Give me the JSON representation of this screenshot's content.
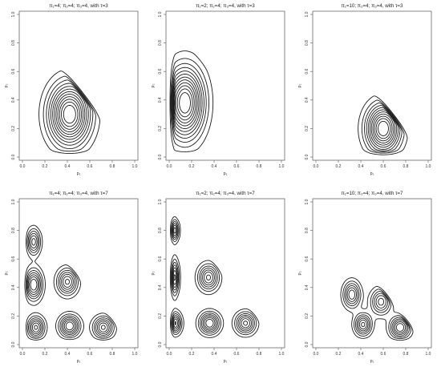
{
  "chart_data": [
    {
      "type": "contour",
      "title": "π₁=4; π₂=4; π₃=4, with τ=3",
      "xlabel": "p₁",
      "ylabel": "p₂",
      "xlim": [
        0,
        1
      ],
      "ylim": [
        0,
        1
      ],
      "x_ticks": [
        "0.0",
        "0.2",
        "0.4",
        "0.6",
        "0.8",
        "1.0"
      ],
      "y_ticks": [
        "0.0",
        "0.2",
        "0.4",
        "0.6",
        "0.8",
        "1.0"
      ],
      "peaks": [
        {
          "x": 0.42,
          "y": 0.3,
          "sx": 0.12,
          "sy": 0.14,
          "h": 1
        }
      ],
      "levels": 12
    },
    {
      "type": "contour",
      "title": "π₁=2; π₂=4; π₃=4, with τ=3",
      "xlabel": "p₁",
      "ylabel": "p₂",
      "xlim": [
        0,
        1
      ],
      "ylim": [
        0,
        1
      ],
      "x_ticks": [
        "0.0",
        "0.2",
        "0.4",
        "0.6",
        "0.8",
        "1.0"
      ],
      "y_ticks": [
        "0.0",
        "0.2",
        "0.4",
        "0.6",
        "0.8",
        "1.0"
      ],
      "peaks": [
        {
          "x": 0.14,
          "y": 0.38,
          "sx": 0.11,
          "sy": 0.16,
          "h": 1
        }
      ],
      "levels": 12
    },
    {
      "type": "contour",
      "title": "π₁=10; π₂=4; π₃=4, with τ=3",
      "xlabel": "p₁",
      "ylabel": "p₂",
      "xlim": [
        0,
        1
      ],
      "ylim": [
        0,
        1
      ],
      "x_ticks": [
        "0.0",
        "0.2",
        "0.4",
        "0.6",
        "0.8",
        "1.0"
      ],
      "y_ticks": [
        "0.0",
        "0.2",
        "0.4",
        "0.6",
        "0.8",
        "1.0"
      ],
      "peaks": [
        {
          "x": 0.6,
          "y": 0.2,
          "sx": 0.1,
          "sy": 0.11,
          "h": 1
        }
      ],
      "levels": 11
    },
    {
      "type": "contour",
      "title": "π₁=4; π₂=4; π₃=4, with τ=7",
      "xlabel": "p₁",
      "ylabel": "p₂",
      "xlim": [
        0,
        1
      ],
      "ylim": [
        0,
        1
      ],
      "x_ticks": [
        "0.0",
        "0.2",
        "0.4",
        "0.6",
        "0.8",
        "1.0"
      ],
      "y_ticks": [
        "0.0",
        "0.2",
        "0.4",
        "0.6",
        "0.8",
        "1.0"
      ],
      "peaks": [
        {
          "x": 0.1,
          "y": 0.72,
          "sx": 0.04,
          "sy": 0.06,
          "h": 0.8
        },
        {
          "x": 0.1,
          "y": 0.42,
          "sx": 0.05,
          "sy": 0.07,
          "h": 1
        },
        {
          "x": 0.4,
          "y": 0.44,
          "sx": 0.06,
          "sy": 0.06,
          "h": 0.9
        },
        {
          "x": 0.12,
          "y": 0.12,
          "sx": 0.05,
          "sy": 0.05,
          "h": 0.9
        },
        {
          "x": 0.42,
          "y": 0.13,
          "sx": 0.06,
          "sy": 0.05,
          "h": 1
        },
        {
          "x": 0.72,
          "y": 0.12,
          "sx": 0.06,
          "sy": 0.05,
          "h": 0.9
        }
      ],
      "levels": 7
    },
    {
      "type": "contour",
      "title": "π₁=2; π₂=4; π₃=4, with τ=7",
      "xlabel": "p₁",
      "ylabel": "p₂",
      "xlim": [
        0,
        1
      ],
      "ylim": [
        0,
        1
      ],
      "x_ticks": [
        "0.0",
        "0.2",
        "0.4",
        "0.6",
        "0.8",
        "1.0"
      ],
      "y_ticks": [
        "0.0",
        "0.2",
        "0.4",
        "0.6",
        "0.8",
        "1.0"
      ],
      "peaks": [
        {
          "x": 0.04,
          "y": 0.8,
          "sx": 0.03,
          "sy": 0.05,
          "h": 0.9
        },
        {
          "x": 0.04,
          "y": 0.47,
          "sx": 0.03,
          "sy": 0.08,
          "h": 1
        },
        {
          "x": 0.35,
          "y": 0.47,
          "sx": 0.06,
          "sy": 0.06,
          "h": 0.9
        },
        {
          "x": 0.05,
          "y": 0.15,
          "sx": 0.04,
          "sy": 0.05,
          "h": 0.9
        },
        {
          "x": 0.36,
          "y": 0.15,
          "sx": 0.06,
          "sy": 0.05,
          "h": 1
        },
        {
          "x": 0.68,
          "y": 0.15,
          "sx": 0.06,
          "sy": 0.05,
          "h": 0.9
        }
      ],
      "levels": 7
    },
    {
      "type": "contour",
      "title": "π₁=10; π₂=4; π₃=4, with τ=7",
      "xlabel": "p₁",
      "ylabel": "p₂",
      "xlim": [
        0,
        1
      ],
      "ylim": [
        0,
        1
      ],
      "x_ticks": [
        "0.0",
        "0.2",
        "0.4",
        "0.6",
        "0.8",
        "1.0"
      ],
      "y_ticks": [
        "0.0",
        "0.2",
        "0.4",
        "0.6",
        "0.8",
        "1.0"
      ],
      "peaks": [
        {
          "x": 0.32,
          "y": 0.35,
          "sx": 0.05,
          "sy": 0.06,
          "h": 0.85
        },
        {
          "x": 0.58,
          "y": 0.3,
          "sx": 0.06,
          "sy": 0.06,
          "h": 0.8
        },
        {
          "x": 0.42,
          "y": 0.14,
          "sx": 0.05,
          "sy": 0.05,
          "h": 0.9
        },
        {
          "x": 0.75,
          "y": 0.12,
          "sx": 0.06,
          "sy": 0.05,
          "h": 1
        }
      ],
      "levels": 7
    }
  ]
}
